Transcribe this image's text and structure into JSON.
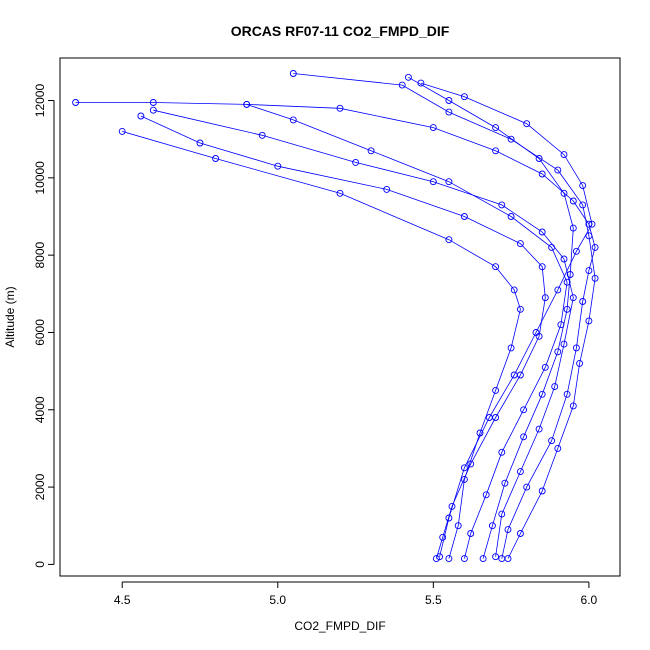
{
  "chart_data": {
    "type": "scatter",
    "title": "ORCAS RF07-11 CO2_FMPD_DIF",
    "xlabel": "CO2_FMPD_DIF",
    "ylabel": "Altitude (m)",
    "xlim": [
      4.3,
      6.1
    ],
    "ylim": [
      -300,
      13100
    ],
    "xticks": [
      4.5,
      5.0,
      5.5,
      6.0
    ],
    "xtick_labels": [
      "4.5",
      "5.0",
      "5.5",
      "6.0"
    ],
    "yticks": [
      0,
      2000,
      4000,
      6000,
      8000,
      10000,
      12000
    ],
    "ytick_labels": [
      "0",
      "2000",
      "4000",
      "6000",
      "8000",
      "10000",
      "12000"
    ],
    "grid": false,
    "color": "#0000ff",
    "marker": "open-circle",
    "connected_by_lines": true,
    "series": [
      {
        "points": [
          [
            5.55,
            150
          ],
          [
            5.58,
            1000
          ],
          [
            5.6,
            2200
          ],
          [
            5.65,
            3400
          ],
          [
            5.7,
            4500
          ],
          [
            5.75,
            5600
          ],
          [
            5.78,
            6600
          ],
          [
            5.76,
            7100
          ],
          [
            5.7,
            7700
          ],
          [
            5.55,
            8400
          ],
          [
            5.2,
            9600
          ],
          [
            4.8,
            10500
          ],
          [
            4.5,
            11200
          ]
        ]
      },
      {
        "points": [
          [
            5.72,
            150
          ],
          [
            5.74,
            900
          ],
          [
            5.8,
            2000
          ],
          [
            5.88,
            3200
          ],
          [
            5.93,
            4400
          ],
          [
            5.96,
            5600
          ],
          [
            5.98,
            6800
          ],
          [
            6.0,
            7600
          ],
          [
            6.02,
            8200
          ],
          [
            6.0,
            8800
          ],
          [
            5.95,
            9400
          ],
          [
            5.85,
            10100
          ],
          [
            5.7,
            10700
          ],
          [
            5.5,
            11300
          ],
          [
            5.2,
            11800
          ],
          [
            4.9,
            11900
          ],
          [
            4.6,
            11950
          ],
          [
            4.35,
            11950
          ]
        ]
      },
      {
        "points": [
          [
            5.51,
            150
          ],
          [
            5.53,
            700
          ],
          [
            5.56,
            1500
          ],
          [
            5.62,
            2600
          ],
          [
            5.7,
            3800
          ],
          [
            5.78,
            4900
          ],
          [
            5.84,
            5900
          ],
          [
            5.86,
            6900
          ],
          [
            5.85,
            7700
          ],
          [
            5.78,
            8300
          ],
          [
            5.6,
            9000
          ],
          [
            5.35,
            9700
          ],
          [
            5.0,
            10300
          ],
          [
            4.75,
            10900
          ],
          [
            4.56,
            11600
          ]
        ]
      },
      {
        "points": [
          [
            5.74,
            150
          ],
          [
            5.78,
            800
          ],
          [
            5.85,
            1900
          ],
          [
            5.9,
            3000
          ],
          [
            5.95,
            4100
          ],
          [
            5.97,
            5200
          ],
          [
            6.0,
            6300
          ],
          [
            6.02,
            7400
          ],
          [
            6.0,
            8500
          ],
          [
            5.98,
            9300
          ],
          [
            5.9,
            10200
          ],
          [
            5.75,
            11000
          ],
          [
            5.55,
            11700
          ],
          [
            5.4,
            12400
          ],
          [
            5.05,
            12700
          ]
        ]
      },
      {
        "points": [
          [
            5.66,
            150
          ],
          [
            5.69,
            1000
          ],
          [
            5.73,
            2100
          ],
          [
            5.79,
            3300
          ],
          [
            5.85,
            4400
          ],
          [
            5.9,
            5500
          ],
          [
            5.93,
            6600
          ],
          [
            5.94,
            7500
          ],
          [
            5.95,
            8700
          ],
          [
            5.92,
            9600
          ],
          [
            5.84,
            10500
          ],
          [
            5.7,
            11300
          ],
          [
            5.55,
            12000
          ],
          [
            5.42,
            12600
          ]
        ]
      },
      {
        "points": [
          [
            5.52,
            200
          ],
          [
            5.55,
            1200
          ],
          [
            5.6,
            2500
          ],
          [
            5.68,
            3800
          ],
          [
            5.76,
            4900
          ],
          [
            5.83,
            6000
          ],
          [
            5.9,
            7100
          ],
          [
            5.96,
            8100
          ],
          [
            6.01,
            8800
          ],
          [
            5.98,
            9800
          ],
          [
            5.92,
            10600
          ],
          [
            5.8,
            11400
          ],
          [
            5.6,
            12100
          ],
          [
            5.46,
            12450
          ]
        ]
      },
      {
        "points": [
          [
            5.7,
            200
          ],
          [
            5.72,
            1300
          ],
          [
            5.78,
            2400
          ],
          [
            5.84,
            3500
          ],
          [
            5.89,
            4600
          ],
          [
            5.92,
            5700
          ],
          [
            5.95,
            6900
          ],
          [
            5.92,
            7900
          ],
          [
            5.85,
            8600
          ],
          [
            5.72,
            9300
          ],
          [
            5.5,
            9900
          ],
          [
            5.25,
            10400
          ],
          [
            4.95,
            11100
          ],
          [
            4.6,
            11750
          ]
        ]
      },
      {
        "points": [
          [
            5.6,
            150
          ],
          [
            5.62,
            800
          ],
          [
            5.67,
            1800
          ],
          [
            5.72,
            2900
          ],
          [
            5.79,
            4000
          ],
          [
            5.86,
            5100
          ],
          [
            5.91,
            6200
          ],
          [
            5.93,
            7300
          ],
          [
            5.88,
            8200
          ],
          [
            5.75,
            9000
          ],
          [
            5.55,
            9900
          ],
          [
            5.3,
            10700
          ],
          [
            5.05,
            11500
          ],
          [
            4.9,
            11900
          ]
        ]
      }
    ]
  }
}
